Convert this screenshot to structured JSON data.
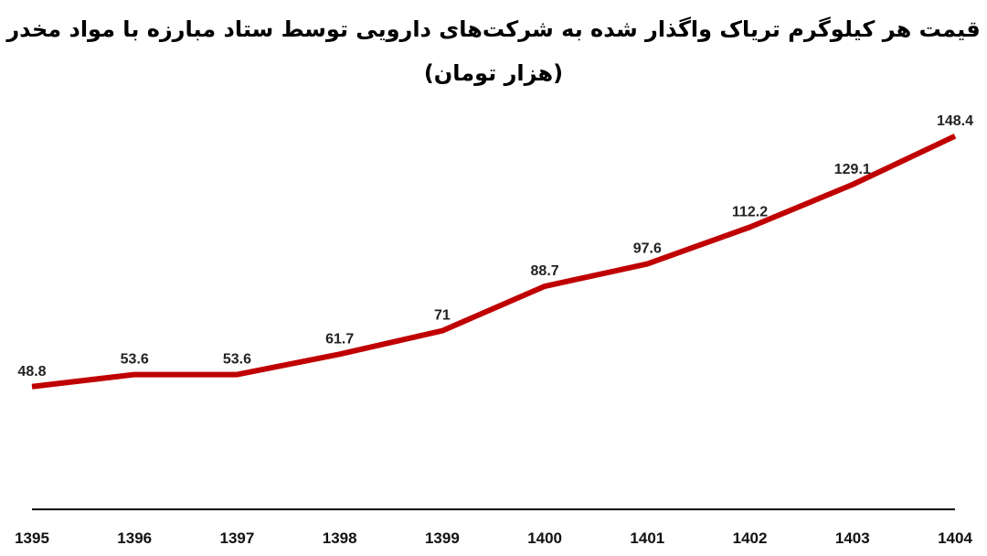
{
  "chart_data": {
    "type": "line",
    "title": "قیمت هر کیلوگرم تریاک واگذار شده به شرکت‌های دارویی توسط ستاد مبارزه با مواد مخدر",
    "subtitle": "(هزار تومان)",
    "xlabel": "",
    "ylabel": "",
    "categories": [
      "1395",
      "1396",
      "1397",
      "1398",
      "1399",
      "1400",
      "1401",
      "1402",
      "1403",
      "1404"
    ],
    "values": [
      48.8,
      53.6,
      53.6,
      61.7,
      71,
      88.7,
      97.6,
      112.2,
      129.1,
      148.4
    ],
    "data_labels": [
      "48.8",
      "53.6",
      "53.6",
      "61.7",
      "71",
      "88.7",
      "97.6",
      "112.2",
      "129.1",
      "148.4"
    ],
    "ylim": [
      0,
      150
    ],
    "grid": false,
    "y_axis_visible": false,
    "line_color": "#C00000"
  }
}
